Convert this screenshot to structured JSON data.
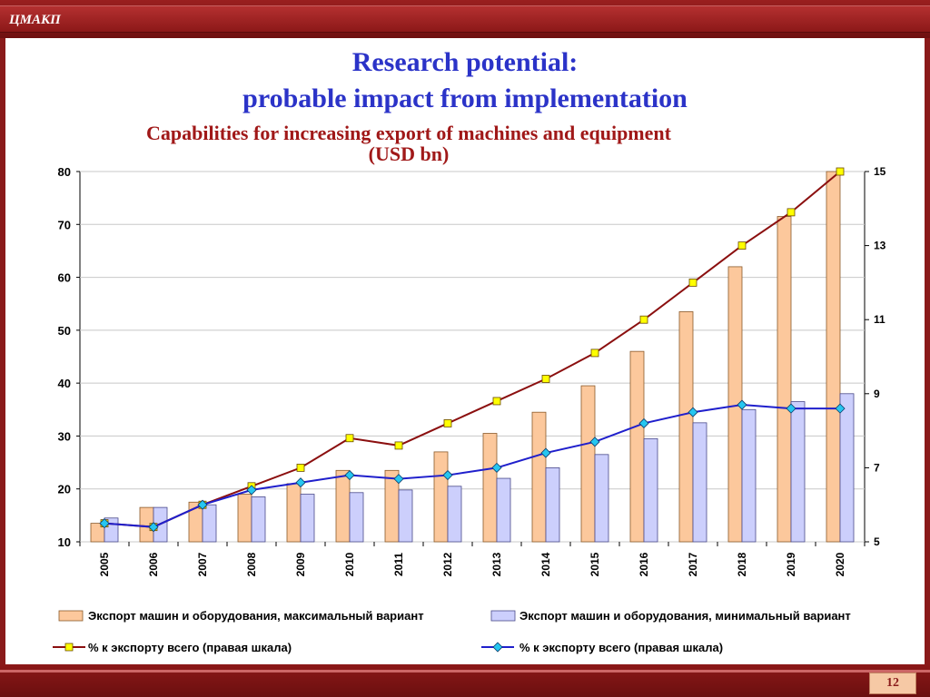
{
  "header": {
    "brand": "ЦМАКП"
  },
  "title": {
    "line1": "Research potential:",
    "line2": "probable impact from implementation"
  },
  "subtitle": {
    "line1": "Capabilities for increasing export of machines and equipment",
    "line2": "(USD bn)"
  },
  "page_number": "12",
  "colors": {
    "bar_max": "#fcc89c",
    "bar_min": "#cccffc",
    "line_max": "#8b0f0f",
    "line_min": "#1f1fcc",
    "marker_square": "#ffff00",
    "marker_diamond": "#26c6f0"
  },
  "chart_data": {
    "type": "bar",
    "categories": [
      "2005",
      "2006",
      "2007",
      "2008",
      "2009",
      "2010",
      "2011",
      "2012",
      "2013",
      "2014",
      "2015",
      "2016",
      "2017",
      "2018",
      "2019",
      "2020"
    ],
    "y_left": {
      "ylim": [
        10,
        80
      ],
      "ticks": [
        "10",
        "20",
        "30",
        "40",
        "50",
        "60",
        "70",
        "80"
      ]
    },
    "y_right": {
      "ylim": [
        5,
        15
      ],
      "ticks": [
        "5",
        "7",
        "9",
        "11",
        "13",
        "15"
      ]
    },
    "series": [
      {
        "name": "Экспорт машин и оборудования, максимальный вариант",
        "kind": "bar",
        "axis": "left",
        "values": [
          13.5,
          16.5,
          17.5,
          19,
          21,
          23.5,
          23.5,
          27,
          30.5,
          34.5,
          39.5,
          46,
          53.5,
          62,
          71.5,
          80.5
        ]
      },
      {
        "name": "Экспорт машин и оборудования, минимальный вариант",
        "kind": "bar",
        "axis": "left",
        "values": [
          14.5,
          16.5,
          17,
          18.5,
          19,
          19.3,
          19.8,
          20.5,
          22,
          24,
          26.5,
          29.5,
          32.5,
          35,
          36.5,
          38
        ]
      },
      {
        "name": "% к экспорту всего (правая шкала)",
        "kind": "line",
        "axis": "right",
        "marker": "square",
        "values": [
          5.5,
          5.4,
          6.0,
          6.5,
          7.0,
          7.8,
          7.6,
          8.2,
          8.8,
          9.4,
          10.1,
          11.0,
          12.0,
          13.0,
          13.9,
          15.0
        ]
      },
      {
        "name": "% к экспорту всего (правая шкала)",
        "kind": "line",
        "axis": "right",
        "marker": "diamond",
        "values": [
          5.5,
          5.4,
          6.0,
          6.4,
          6.6,
          6.8,
          6.7,
          6.8,
          7.0,
          7.4,
          7.7,
          8.2,
          8.5,
          8.7,
          8.6,
          8.6
        ]
      }
    ],
    "legend": "bottom",
    "grid": true
  }
}
